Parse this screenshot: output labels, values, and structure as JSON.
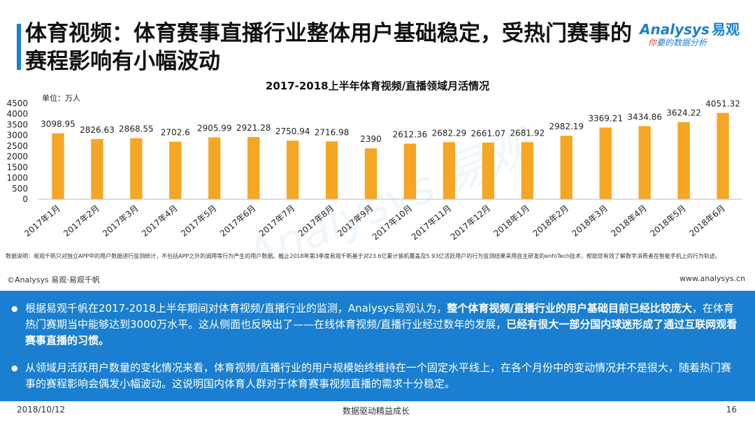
{
  "page": {
    "title": "体育视频：体育赛事直播行业整体用户基础稳定，受热门赛事的赛程影响有小幅波动",
    "logo_main": "Analysys",
    "logo_cn": "易观",
    "logo_sub_accent": "你",
    "logo_sub_rest": "要的数据分析",
    "note": "数据说明：易观千帆只对独立APP中的用户数据进行监测统计，不包括APP之外的调用等行为产生的用户数据。截止2018年第3季度易观千帆基于对23.6亿累计装机覆盖及5.93亿活跃用户的行为监测结果采用自主研发的enfoTech技术，帮助您有效了解数字消费者在智能手机上的行为轨迹。",
    "source": "©Analysys 易观·易观千帆",
    "url": "www.analysys.cn",
    "bullet1_a": "根据易观千帆在2017-2018上半年期间对体育视频/直播行业的监测，Analysys易观认为，",
    "bullet1_b": "整个体育视频/直播行业的用户基础目前已经比较庞大",
    "bullet1_c": "，在体育热门赛期当中能够达到3000万水平。这从侧面也反映出了——在线体育视频/直播行业经过数年的发展，",
    "bullet1_d": "已经有很大一部分国内球迷形成了通过互联网观看赛事直播的习惯。",
    "bullet2": "从领域月活跃用户数量的变化情况来看，体育视频/直播行业的用户规模始终维持在一个固定水平线上，在各个月份中的变动情况并不是很大，随着热门赛事的赛程影响会偶发小幅波动。这说明国内体育人群对于体育赛事视频直播的需求十分稳定。",
    "date": "2018/10/12",
    "slogan": "数据驱动精益成长",
    "page_number": "16"
  },
  "chart_data": {
    "type": "bar",
    "title": "2017-2018上半年体育视频/直播领域月活情况",
    "ylabel": "单位：万人",
    "xlabel": "",
    "ylim": [
      0,
      4500
    ],
    "yticks": [
      0,
      500,
      1000,
      1500,
      2000,
      2500,
      3000,
      3500,
      4000,
      4500
    ],
    "categories": [
      "2017年1月",
      "2017年2月",
      "2017年3月",
      "2017年4月",
      "2017年5月",
      "2017年6月",
      "2017年7月",
      "2017年8月",
      "2017年9月",
      "2017年10月",
      "2017年11月",
      "2017年12月",
      "2018年1月",
      "2018年2月",
      "2018年3月",
      "2018年4月",
      "2018年5月",
      "2018年6月"
    ],
    "values": [
      3098.95,
      2826.63,
      2868.55,
      2702.6,
      2905.99,
      2921.28,
      2750.94,
      2716.98,
      2390,
      2612.36,
      2682.29,
      2661.07,
      2681.92,
      2982.19,
      3369.21,
      3434.86,
      3624.22,
      4051.32
    ],
    "bar_color": "#f5a623",
    "grid": false,
    "watermark": "Analysys 易观"
  }
}
